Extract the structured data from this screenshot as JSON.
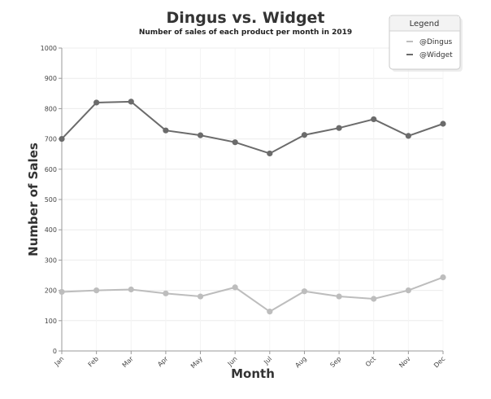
{
  "chart_data": {
    "type": "line",
    "title": "Dingus vs. Widget",
    "subtitle": "Number of sales of each product per month in 2019",
    "xlabel": "Month",
    "ylabel": "Number of Sales",
    "categories": [
      "Jan",
      "Feb",
      "Mar",
      "Apr",
      "May",
      "Jun",
      "Jul",
      "Aug",
      "Sep",
      "Oct",
      "Nov",
      "Dec"
    ],
    "ylim": [
      0,
      1000
    ],
    "yticks": [
      0,
      100,
      200,
      300,
      400,
      500,
      600,
      700,
      800,
      900,
      1000
    ],
    "grid": true,
    "legend": {
      "title": "Legend",
      "position": "top-right"
    },
    "series": [
      {
        "name": "@Dingus",
        "color": "#bdbdbd",
        "values": [
          195,
          200,
          203,
          190,
          180,
          210,
          130,
          197,
          180,
          172,
          200,
          243
        ]
      },
      {
        "name": "@Widget",
        "color": "#6b6b6b",
        "values": [
          700,
          820,
          823,
          728,
          712,
          689,
          652,
          713,
          736,
          765,
          710,
          750
        ]
      }
    ]
  }
}
